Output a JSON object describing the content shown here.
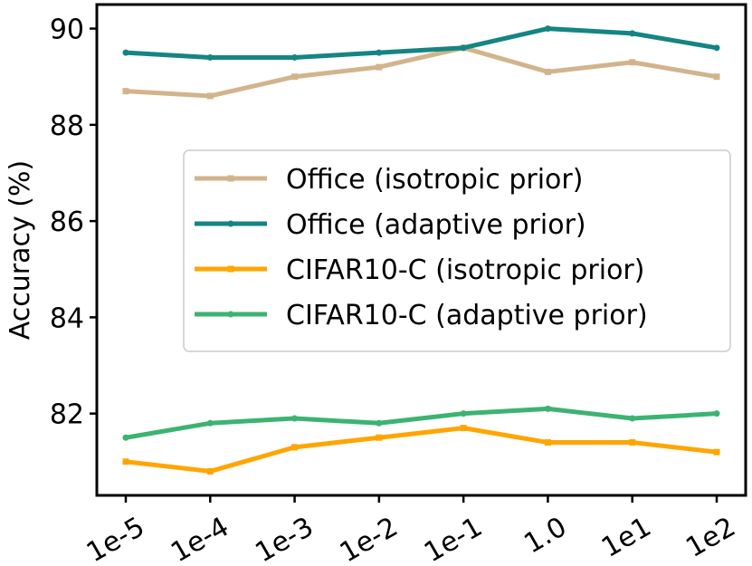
{
  "chart_data": {
    "type": "line",
    "title": "",
    "xlabel": "",
    "ylabel": "Accuracy (%)",
    "categories": [
      "1e-5",
      "1e-4",
      "1e-3",
      "1e-2",
      "1e-1",
      "1.0",
      "1e1",
      "1e2"
    ],
    "ylim": [
      80.3,
      90.5
    ],
    "yticks": [
      82,
      84,
      86,
      88,
      90
    ],
    "grid": false,
    "legend_position": "center-right",
    "series": [
      {
        "name": "Office (isotropic prior)",
        "color": "#d2b48c",
        "marker": "square",
        "values": [
          88.7,
          88.6,
          89.0,
          89.2,
          89.6,
          89.1,
          89.3,
          89.0
        ]
      },
      {
        "name": "Office (adaptive prior)",
        "color": "#148583",
        "marker": "circle",
        "values": [
          89.5,
          89.4,
          89.4,
          89.5,
          89.6,
          90.0,
          89.9,
          89.6
        ]
      },
      {
        "name": "CIFAR10-C (isotropic prior)",
        "color": "#ffa500",
        "marker": "square",
        "values": [
          81.0,
          80.8,
          81.3,
          81.5,
          81.7,
          81.4,
          81.4,
          81.2
        ]
      },
      {
        "name": "CIFAR10-C (adaptive prior)",
        "color": "#3cb371",
        "marker": "circle",
        "values": [
          81.5,
          81.8,
          81.9,
          81.8,
          82.0,
          82.1,
          81.9,
          82.0
        ]
      }
    ]
  }
}
